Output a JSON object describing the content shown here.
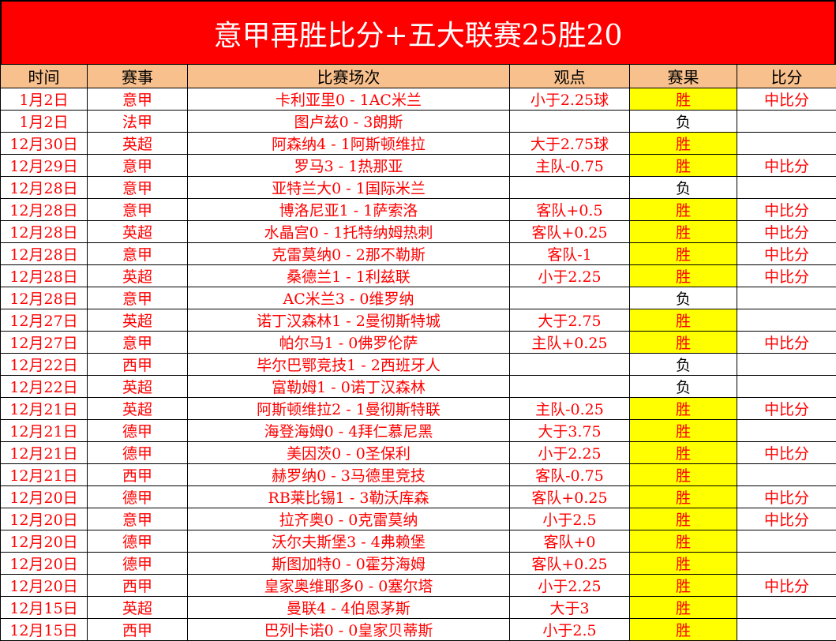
{
  "title": "意甲再胜比分+五大联赛25胜20",
  "headers": [
    "时间",
    "赛事",
    "比赛场次",
    "观点",
    "赛果",
    "比分"
  ],
  "colors": {
    "title_bg": "#ff0000",
    "header_bg": "#f8c08c",
    "win_bg": "#ffff00",
    "text": "#ff0000"
  },
  "rows": [
    [
      "1月2日",
      "意甲",
      "卡利亚里0 - 1AC米兰",
      "小于2.25球",
      "胜",
      "中比分"
    ],
    [
      "1月2日",
      "法甲",
      "图卢兹0 - 3朗斯",
      "",
      "负",
      ""
    ],
    [
      "12月30日",
      "英超",
      "阿森纳4 - 1阿斯顿维拉",
      "大于2.75球",
      "胜",
      ""
    ],
    [
      "12月29日",
      "意甲",
      "罗马3 - 1热那亚",
      "主队-0.75",
      "胜",
      "中比分"
    ],
    [
      "12月28日",
      "意甲",
      "亚特兰大0 - 1国际米兰",
      "",
      "负",
      ""
    ],
    [
      "12月28日",
      "意甲",
      "博洛尼亚1 - 1萨索洛",
      "客队+0.5",
      "胜",
      "中比分"
    ],
    [
      "12月28日",
      "英超",
      "水晶宫0 - 1托特纳姆热刺",
      "客队+0.25",
      "胜",
      "中比分"
    ],
    [
      "12月28日",
      "意甲",
      "克雷莫纳0 - 2那不勒斯",
      "客队-1",
      "胜",
      "中比分"
    ],
    [
      "12月28日",
      "英超",
      "桑德兰1 - 1利兹联",
      "小于2.25",
      "胜",
      "中比分"
    ],
    [
      "12月28日",
      "意甲",
      "AC米兰3 - 0维罗纳",
      "",
      "负",
      ""
    ],
    [
      "12月27日",
      "英超",
      "诺丁汉森林1 - 2曼彻斯特城",
      "大于2.75",
      "胜",
      ""
    ],
    [
      "12月27日",
      "意甲",
      "帕尔马1 - 0佛罗伦萨",
      "主队+0.25",
      "胜",
      "中比分"
    ],
    [
      "12月22日",
      "西甲",
      "毕尔巴鄂竞技1 - 2西班牙人",
      "",
      "负",
      ""
    ],
    [
      "12月22日",
      "英超",
      "富勒姆1 - 0诺丁汉森林",
      "",
      "负",
      ""
    ],
    [
      "12月21日",
      "英超",
      "阿斯顿维拉2 - 1曼彻斯特联",
      "主队-0.25",
      "胜",
      "中比分"
    ],
    [
      "12月21日",
      "德甲",
      "海登海姆0 - 4拜仁慕尼黑",
      "大于3.75",
      "胜",
      ""
    ],
    [
      "12月21日",
      "德甲",
      "美因茨0 - 0圣保利",
      "小于2.25",
      "胜",
      "中比分"
    ],
    [
      "12月21日",
      "西甲",
      "赫罗纳0 - 3马德里竞技",
      "客队-0.75",
      "胜",
      ""
    ],
    [
      "12月20日",
      "德甲",
      "RB莱比锡1 - 3勒沃库森",
      "客队+0.25",
      "胜",
      "中比分"
    ],
    [
      "12月20日",
      "意甲",
      "拉齐奥0 - 0克雷莫纳",
      "小于2.5",
      "胜",
      "中比分"
    ],
    [
      "12月20日",
      "德甲",
      "沃尔夫斯堡3 - 4弗赖堡",
      "客队+0",
      "胜",
      ""
    ],
    [
      "12月20日",
      "德甲",
      "斯图加特0 - 0霍芬海姆",
      "客队+0.25",
      "胜",
      ""
    ],
    [
      "12月20日",
      "西甲",
      "皇家奥维耶多0 - 0塞尔塔",
      "小于2.25",
      "胜",
      "中比分"
    ],
    [
      "12月15日",
      "英超",
      "曼联4 - 4伯恩茅斯",
      "大于3",
      "胜",
      ""
    ],
    [
      "12月15日",
      "西甲",
      "巴列卡诺0 - 0皇家贝蒂斯",
      "小于2.5",
      "胜",
      ""
    ]
  ]
}
